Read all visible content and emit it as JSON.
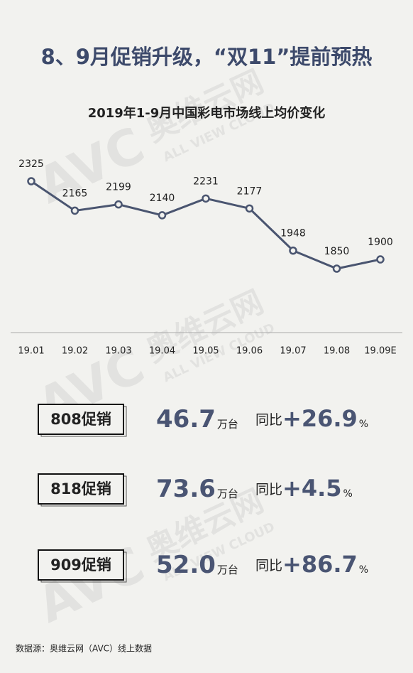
{
  "header": {
    "title": "8、9月促销升级，“双11”提前预热"
  },
  "chart_data": {
    "type": "line",
    "title": "2019年1-9月中国彩电市场线上均价变化",
    "categories": [
      "19.01",
      "19.02",
      "19.03",
      "19.04",
      "19.05",
      "19.06",
      "19.07",
      "19.08",
      "19.09E"
    ],
    "series": [
      {
        "name": "均价",
        "color": "#4a5570",
        "values": [
          2325,
          2165,
          2199,
          2140,
          2231,
          2177,
          1948,
          1850,
          1900
        ]
      }
    ]
  },
  "stats": [
    {
      "label": "808促销",
      "value": "46.7",
      "unit": "万台",
      "yoy_label": "同比",
      "yoy": "+26.9",
      "yoy_unit": "%"
    },
    {
      "label": "818促销",
      "value": "73.6",
      "unit": "万台",
      "yoy_label": "同比",
      "yoy": "+4.5",
      "yoy_unit": "%"
    },
    {
      "label": "909促销",
      "value": "52.0",
      "unit": "万台",
      "yoy_label": "同比",
      "yoy": "+86.7",
      "yoy_unit": "%"
    }
  ],
  "watermark": {
    "logo": "AVC",
    "cn": "奥维云网",
    "en": "ALL VIEW CLOUD"
  },
  "footer": {
    "source": "数据源：奥维云网（AVC）线上数据"
  }
}
